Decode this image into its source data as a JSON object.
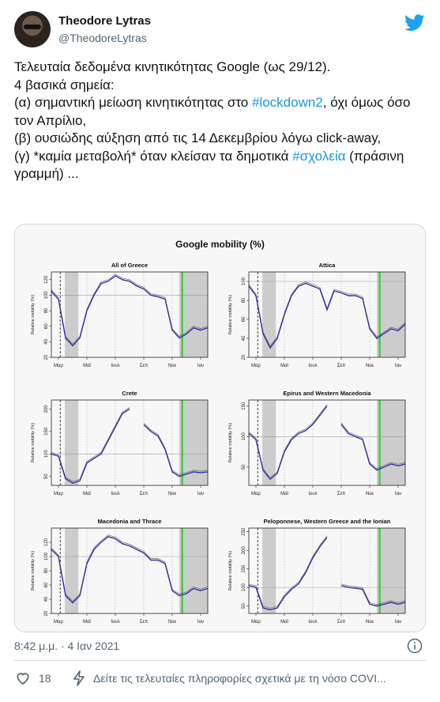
{
  "tweet": {
    "display_name": "Theodore Lytras",
    "handle": "@TheodoreLytras",
    "lines": [
      [
        {
          "t": "Τελευταία δεδομένα κινητικότητας Google (ως 29/12)."
        }
      ],
      [
        {
          "t": "4 βασικά σημεία:"
        }
      ],
      [
        {
          "t": "(α) σημαντική μείωση κινητικότητας στο "
        },
        {
          "t": "#lockdown2",
          "h": true
        },
        {
          "t": ", όχι όμως όσο τον Απρίλιο,"
        }
      ],
      [
        {
          "t": "(β) ουσιώδης αύξηση από τις 14 Δεκεμβρίου λόγω click-away,"
        }
      ],
      [
        {
          "t": "(γ) *καμία μεταβολή* όταν κλείσαν τα δημοτικά "
        },
        {
          "t": "#σχολεία",
          "h": true
        },
        {
          "t": " (πράσινη γραμμή) ..."
        }
      ]
    ],
    "timestamp": "8:42 μ.μ. · 4 Ιαν 2021",
    "likes": "18",
    "covid_label": "Δείτε τις τελευταίες πληροφορίες σχετικά με τη νόσο COVI...",
    "colors": {
      "accent": "#1b95e0",
      "line": "#3333aa",
      "raw": "#333333",
      "shade": "#cccccc",
      "green": "#33cc33"
    }
  },
  "figure": {
    "title": "Google mobility (%)",
    "x_ticks": [
      "Μαρ",
      "Μαϊ",
      "Ιουλ",
      "Σεπ",
      "Νοε",
      "Ιαν"
    ],
    "ylabel": "Relative mobility (%)"
  },
  "chart_data": [
    {
      "type": "line",
      "title": "All of Greece",
      "ylim": [
        20,
        130
      ],
      "yticks": [
        20,
        40,
        60,
        80,
        100,
        120
      ],
      "x": [
        0,
        2,
        4,
        6,
        8,
        10,
        12,
        14,
        16,
        18,
        20,
        22,
        24,
        26,
        28,
        30,
        32,
        34,
        36,
        38,
        40,
        42,
        44
      ],
      "values": [
        105,
        95,
        45,
        35,
        45,
        80,
        100,
        115,
        118,
        125,
        120,
        118,
        112,
        108,
        100,
        98,
        95,
        55,
        45,
        50,
        58,
        55,
        58
      ]
    },
    {
      "type": "line",
      "title": "Attica",
      "ylim": [
        20,
        110
      ],
      "yticks": [
        20,
        40,
        60,
        80,
        100
      ],
      "x": [
        0,
        2,
        4,
        6,
        8,
        10,
        12,
        14,
        16,
        18,
        20,
        22,
        24,
        26,
        28,
        30,
        32,
        34,
        36,
        38,
        40,
        42,
        44
      ],
      "values": [
        95,
        85,
        45,
        30,
        40,
        65,
        85,
        95,
        98,
        95,
        92,
        70,
        90,
        88,
        85,
        85,
        82,
        50,
        40,
        45,
        50,
        48,
        55
      ]
    },
    {
      "type": "line",
      "title": "Crete",
      "ylim": [
        30,
        220
      ],
      "yticks": [
        50,
        100,
        150,
        200
      ],
      "x": [
        0,
        2,
        4,
        6,
        8,
        10,
        12,
        14,
        16,
        18,
        20,
        22,
        24,
        26,
        28,
        30,
        32,
        34,
        36,
        38,
        40,
        42,
        44
      ],
      "values": [
        100,
        95,
        45,
        35,
        40,
        80,
        90,
        100,
        130,
        160,
        190,
        200,
        null,
        165,
        150,
        140,
        110,
        60,
        50,
        55,
        60,
        58,
        60
      ]
    },
    {
      "type": "line",
      "title": "Epirus and Western Macedonia",
      "ylim": [
        20,
        160
      ],
      "yticks": [
        50,
        100,
        150
      ],
      "x": [
        0,
        2,
        4,
        6,
        8,
        10,
        12,
        14,
        16,
        18,
        20,
        22,
        24,
        26,
        28,
        30,
        32,
        34,
        36,
        38,
        40,
        42,
        44
      ],
      "values": [
        105,
        95,
        45,
        30,
        40,
        75,
        95,
        105,
        110,
        120,
        135,
        150,
        null,
        120,
        105,
        100,
        95,
        55,
        45,
        50,
        55,
        52,
        55
      ]
    },
    {
      "type": "line",
      "title": "Macedonia and Thrace",
      "ylim": [
        20,
        140
      ],
      "yticks": [
        20,
        40,
        60,
        80,
        100,
        120
      ],
      "x": [
        0,
        2,
        4,
        6,
        8,
        10,
        12,
        14,
        16,
        18,
        20,
        22,
        24,
        26,
        28,
        30,
        32,
        34,
        36,
        38,
        40,
        42,
        44
      ],
      "values": [
        110,
        100,
        45,
        35,
        45,
        90,
        110,
        120,
        128,
        125,
        118,
        115,
        110,
        105,
        95,
        95,
        90,
        52,
        45,
        48,
        55,
        52,
        55
      ]
    },
    {
      "type": "line",
      "title": "Peloponnese, Western Greece and the Ionian",
      "ylim": [
        30,
        260
      ],
      "yticks": [
        50,
        100,
        150,
        200,
        250
      ],
      "x": [
        0,
        2,
        4,
        6,
        8,
        10,
        12,
        14,
        16,
        18,
        20,
        22,
        24,
        26,
        28,
        30,
        32,
        34,
        36,
        38,
        40,
        42,
        44
      ],
      "values": [
        105,
        100,
        45,
        40,
        45,
        75,
        95,
        110,
        140,
        180,
        210,
        235,
        null,
        105,
        100,
        98,
        95,
        55,
        50,
        55,
        60,
        55,
        60
      ]
    }
  ]
}
